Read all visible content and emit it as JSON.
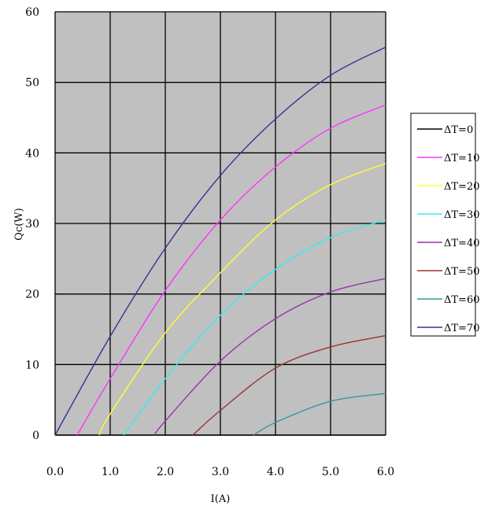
{
  "chart_data": {
    "type": "line",
    "title": "",
    "xlabel": "I(A)",
    "ylabel": "Qc(W)",
    "xlim": [
      0,
      6
    ],
    "ylim": [
      0,
      60
    ],
    "x_ticks": [
      "0.0",
      "1.0",
      "2.0",
      "3.0",
      "4.0",
      "5.0",
      "6.0"
    ],
    "y_ticks": [
      "0",
      "10",
      "20",
      "30",
      "40",
      "50",
      "60"
    ],
    "grid": true,
    "background": "#c0c0c0",
    "legend_position": "right",
    "series": [
      {
        "name": "ΔT=0",
        "color": "#000000",
        "points": [
          [
            0,
            0
          ],
          [
            6,
            0
          ]
        ]
      },
      {
        "name": "ΔT=10",
        "color": "#ff33ff",
        "points": [
          [
            0.4,
            0
          ],
          [
            1.0,
            8
          ],
          [
            2.0,
            20.5
          ],
          [
            3.0,
            30.5
          ],
          [
            4.0,
            38
          ],
          [
            5.0,
            43.5
          ],
          [
            6.0,
            46.8
          ]
        ]
      },
      {
        "name": "ΔT=20",
        "color": "#ffff33",
        "points": [
          [
            0.8,
            0
          ],
          [
            1.0,
            3
          ],
          [
            2.0,
            14.5
          ],
          [
            3.0,
            23
          ],
          [
            4.0,
            30.5
          ],
          [
            5.0,
            35.5
          ],
          [
            6.0,
            38.5
          ]
        ]
      },
      {
        "name": "ΔT=30",
        "color": "#33eeee",
        "points": [
          [
            1.25,
            0
          ],
          [
            2.0,
            8
          ],
          [
            3.0,
            17
          ],
          [
            4.0,
            23.5
          ],
          [
            5.0,
            28
          ],
          [
            6.0,
            30.5
          ]
        ]
      },
      {
        "name": "ΔT=40",
        "color": "#9933aa",
        "points": [
          [
            1.8,
            0
          ],
          [
            2.0,
            2
          ],
          [
            3.0,
            10.5
          ],
          [
            4.0,
            16.5
          ],
          [
            5.0,
            20.3
          ],
          [
            6.0,
            22.2
          ]
        ]
      },
      {
        "name": "ΔT=50",
        "color": "#993333",
        "points": [
          [
            2.5,
            0
          ],
          [
            3.0,
            3.5
          ],
          [
            4.0,
            9.5
          ],
          [
            5.0,
            12.5
          ],
          [
            6.0,
            14.1
          ]
        ]
      },
      {
        "name": "ΔT=60",
        "color": "#339999",
        "points": [
          [
            3.6,
            0
          ],
          [
            4.0,
            1.8
          ],
          [
            5.0,
            4.8
          ],
          [
            6.0,
            5.9
          ]
        ]
      },
      {
        "name": "ΔT=70",
        "color": "#333399",
        "points": [
          [
            0,
            0
          ],
          [
            1.0,
            14
          ],
          [
            2.0,
            26.5
          ],
          [
            3.0,
            36.8
          ],
          [
            4.0,
            44.8
          ],
          [
            5.0,
            51
          ],
          [
            6.0,
            55
          ]
        ]
      }
    ]
  }
}
